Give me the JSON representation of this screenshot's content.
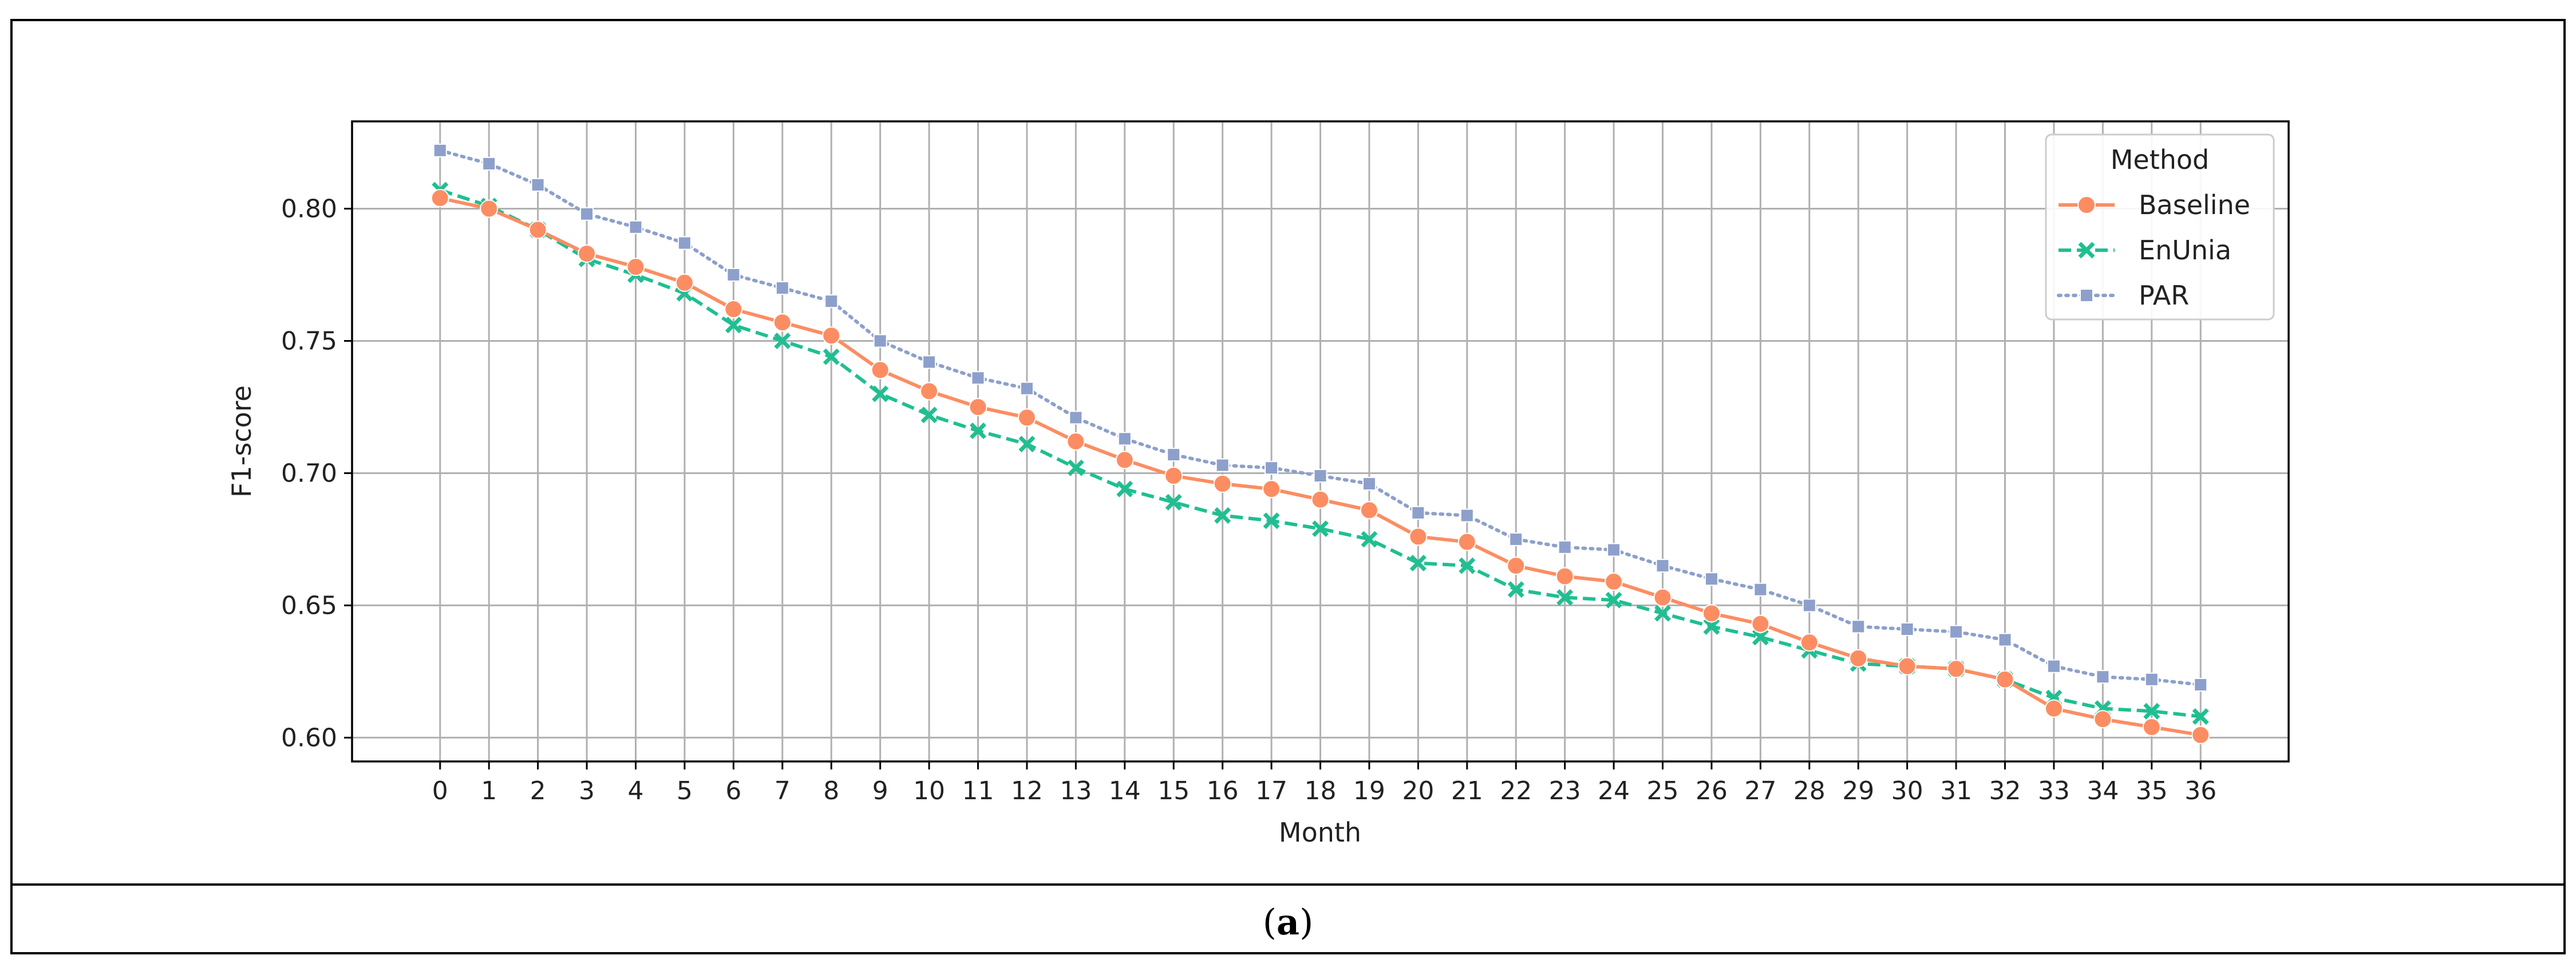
{
  "caption": {
    "label": "a",
    "open": "(",
    "close": ")"
  },
  "chart_data": {
    "type": "line",
    "xlabel": "Month",
    "ylabel": "F1-score",
    "x": [
      0,
      1,
      2,
      3,
      4,
      5,
      6,
      7,
      8,
      9,
      10,
      11,
      12,
      13,
      14,
      15,
      16,
      17,
      18,
      19,
      20,
      21,
      22,
      23,
      24,
      25,
      26,
      27,
      28,
      29,
      30,
      31,
      32,
      33,
      34,
      35,
      36
    ],
    "xlim": [
      -1.8,
      37.8
    ],
    "ylim": [
      0.591,
      0.833
    ],
    "yticks": [
      0.6,
      0.65,
      0.7,
      0.75,
      0.8
    ],
    "ytick_labels": [
      "0.60",
      "0.65",
      "0.70",
      "0.75",
      "0.80"
    ],
    "grid": true,
    "legend": {
      "title": "Method",
      "placement": "top-right"
    },
    "series": [
      {
        "name": "Baseline",
        "color": "#fc8d62",
        "linestyle": "solid",
        "marker": "circle",
        "values": [
          0.804,
          0.8,
          0.792,
          0.783,
          0.778,
          0.772,
          0.762,
          0.757,
          0.752,
          0.739,
          0.731,
          0.725,
          0.721,
          0.712,
          0.705,
          0.699,
          0.696,
          0.694,
          0.69,
          0.686,
          0.676,
          0.674,
          0.665,
          0.661,
          0.659,
          0.653,
          0.647,
          0.643,
          0.636,
          0.63,
          0.627,
          0.626,
          0.622,
          0.611,
          0.607,
          0.604,
          0.601
        ]
      },
      {
        "name": "EnUnia",
        "color": "#1fbf91",
        "linestyle": "dashed",
        "marker": "x",
        "values": [
          0.807,
          0.801,
          0.792,
          0.781,
          0.775,
          0.768,
          0.756,
          0.75,
          0.744,
          0.73,
          0.722,
          0.716,
          0.711,
          0.702,
          0.694,
          0.689,
          0.684,
          0.682,
          0.679,
          0.675,
          0.666,
          0.665,
          0.656,
          0.653,
          0.652,
          0.647,
          0.642,
          0.638,
          0.633,
          0.628,
          0.627,
          0.626,
          0.622,
          0.615,
          0.611,
          0.61,
          0.608
        ]
      },
      {
        "name": "PAR",
        "color": "#8da0cb",
        "linestyle": "dotted",
        "marker": "square",
        "values": [
          0.822,
          0.817,
          0.809,
          0.798,
          0.793,
          0.787,
          0.775,
          0.77,
          0.765,
          0.75,
          0.742,
          0.736,
          0.732,
          0.721,
          0.713,
          0.707,
          0.703,
          0.702,
          0.699,
          0.696,
          0.685,
          0.684,
          0.675,
          0.672,
          0.671,
          0.665,
          0.66,
          0.656,
          0.65,
          0.642,
          0.641,
          0.64,
          0.637,
          0.627,
          0.623,
          0.622,
          0.62
        ]
      }
    ]
  }
}
